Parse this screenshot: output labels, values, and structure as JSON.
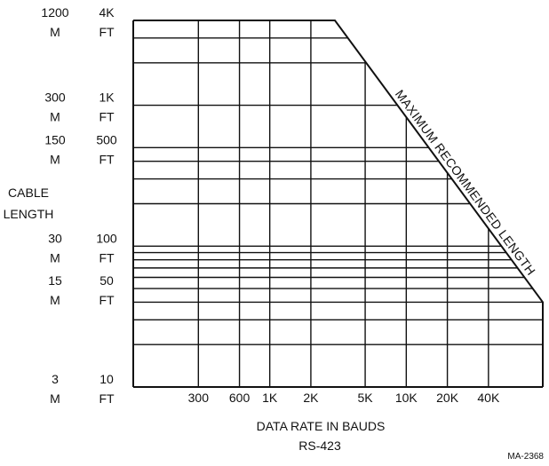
{
  "chart_data": {
    "type": "line",
    "x_scale": "log",
    "y_scale": "log",
    "xlabel": "DATA RATE IN BAUDS",
    "subtitle": "RS-423",
    "ylabel": [
      "CABLE",
      "LENGTH"
    ],
    "x_ticks": [
      {
        "value": 300,
        "label": "300"
      },
      {
        "value": 600,
        "label": "600"
      },
      {
        "value": 1000,
        "label": "1K"
      },
      {
        "value": 2000,
        "label": "2K"
      },
      {
        "value": 5000,
        "label": "5K"
      },
      {
        "value": 10000,
        "label": "10K"
      },
      {
        "value": 20000,
        "label": "20K"
      },
      {
        "value": 40000,
        "label": "40K"
      }
    ],
    "y_ticks": [
      {
        "value": 4000,
        "meters": "1200",
        "meters_unit": "M",
        "feet": "4K",
        "feet_unit": "FT"
      },
      {
        "value": 1000,
        "meters": "300",
        "meters_unit": "M",
        "feet": "1K",
        "feet_unit": "FT"
      },
      {
        "value": 500,
        "meters": "150",
        "meters_unit": "M",
        "feet": "500",
        "feet_unit": "FT"
      },
      {
        "value": 100,
        "meters": "30",
        "meters_unit": "M",
        "feet": "100",
        "feet_unit": "FT"
      },
      {
        "value": 50,
        "meters": "15",
        "meters_unit": "M",
        "feet": "50",
        "feet_unit": "FT"
      },
      {
        "value": 10,
        "meters": "3",
        "meters_unit": "M",
        "feet": "10",
        "feet_unit": "FT"
      }
    ],
    "x_gridlines": [
      300,
      600,
      1000,
      2000,
      5000,
      10000,
      20000,
      40000
    ],
    "y_gridlines": [
      10,
      20,
      30,
      40,
      50,
      60,
      70,
      80,
      90,
      100,
      200,
      300,
      400,
      500,
      1000,
      2000,
      3000
    ],
    "xlim": [
      100,
      100000
    ],
    "ylim": [
      10,
      4000
    ],
    "series": [
      {
        "name": "MAXIMUM RECOMMENDED LENGTH",
        "x": [
          100,
          3000,
          100000,
          100000
        ],
        "y": [
          4000,
          4000,
          40,
          10
        ]
      }
    ],
    "figure_code": "MA-2368"
  }
}
